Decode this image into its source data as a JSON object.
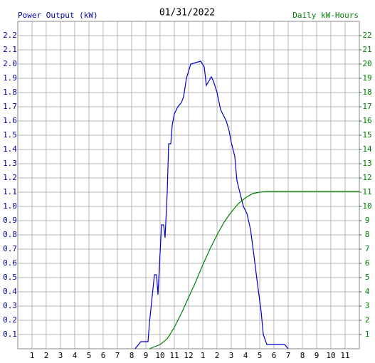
{
  "chart_data": {
    "type": "line",
    "title": "01/31/2022",
    "y_label": "Power Output (kW)",
    "y2_label": "Daily kW-Hours",
    "xlim": [
      0,
      24
    ],
    "xticks": [
      1,
      2,
      3,
      4,
      5,
      6,
      7,
      8,
      9,
      10,
      11,
      12,
      {
        "value": 13,
        "label": "1"
      },
      {
        "value": 14,
        "label": "2"
      },
      {
        "value": 15,
        "label": "3"
      },
      {
        "value": 16,
        "label": "4"
      },
      {
        "value": 17,
        "label": "5"
      },
      {
        "value": 18,
        "label": "6"
      },
      {
        "value": 19,
        "label": "7"
      },
      {
        "value": 20,
        "label": "8"
      },
      {
        "value": 21,
        "label": "9"
      },
      {
        "value": 22,
        "label": "10"
      },
      {
        "value": 23,
        "label": "11"
      }
    ],
    "ylim": [
      0,
      2.3
    ],
    "yticks": [
      0.1,
      0.2,
      0.3,
      0.4,
      0.5,
      0.6,
      0.7,
      0.8,
      0.9,
      {
        "value": 1,
        "label": "1.0"
      },
      1.1,
      1.2,
      1.3,
      1.4,
      1.5,
      1.6,
      1.7,
      1.8,
      1.9,
      {
        "value": 2,
        "label": "2.0"
      },
      2.1,
      2.2
    ],
    "y2lim": [
      0,
      23
    ],
    "y2ticks": [
      1,
      2,
      3,
      4,
      5,
      6,
      7,
      8,
      9,
      10,
      11,
      12,
      13,
      14,
      15,
      16,
      17,
      18,
      19,
      20,
      21,
      22
    ],
    "y_color": "#0000aa",
    "y2_color": "#008000",
    "grid": true,
    "series": [
      {
        "name": "Power Output",
        "color": "#0000cc",
        "x": [
          8.25,
          8.4,
          8.65,
          9.15,
          9.25,
          9.6,
          9.75,
          9.85,
          10.1,
          10.25,
          10.35,
          10.5,
          10.6,
          10.75,
          10.85,
          11,
          11.25,
          11.5,
          11.65,
          11.85,
          12.15,
          12.5,
          12.85,
          13.1,
          13.25,
          13.6,
          13.75,
          14,
          14.25,
          14.65,
          14.85,
          15,
          15.25,
          15.4,
          15.65,
          15.85,
          16.1,
          16.35,
          16.6,
          16.85,
          17.1,
          17.25,
          17.5,
          17.65,
          18.75,
          19
        ],
        "values": [
          0,
          0.02,
          0.05,
          0.05,
          0.18,
          0.52,
          0.52,
          0.38,
          0.87,
          0.87,
          0.78,
          1.1,
          1.44,
          1.44,
          1.57,
          1.65,
          1.7,
          1.73,
          1.77,
          1.9,
          2.0,
          2.01,
          2.02,
          1.98,
          1.85,
          1.91,
          1.88,
          1.8,
          1.68,
          1.6,
          1.53,
          1.45,
          1.35,
          1.18,
          1.08,
          1.0,
          0.95,
          0.84,
          0.65,
          0.45,
          0.26,
          0.1,
          0.03,
          0.03,
          0.03,
          0
        ]
      },
      {
        "name": "Daily kW-Hours",
        "color": "#008000",
        "axis": "y2",
        "x": [
          9.25,
          10,
          10.5,
          11,
          11.5,
          12,
          12.5,
          13,
          13.5,
          14,
          14.5,
          15,
          15.5,
          16,
          16.5,
          17,
          17.5,
          24
        ],
        "values": [
          0,
          0.3,
          0.7,
          1.5,
          2.5,
          3.6,
          4.7,
          5.9,
          7.0,
          8.0,
          8.9,
          9.6,
          10.2,
          10.6,
          10.9,
          11.0,
          11.05,
          11.05
        ]
      }
    ]
  }
}
